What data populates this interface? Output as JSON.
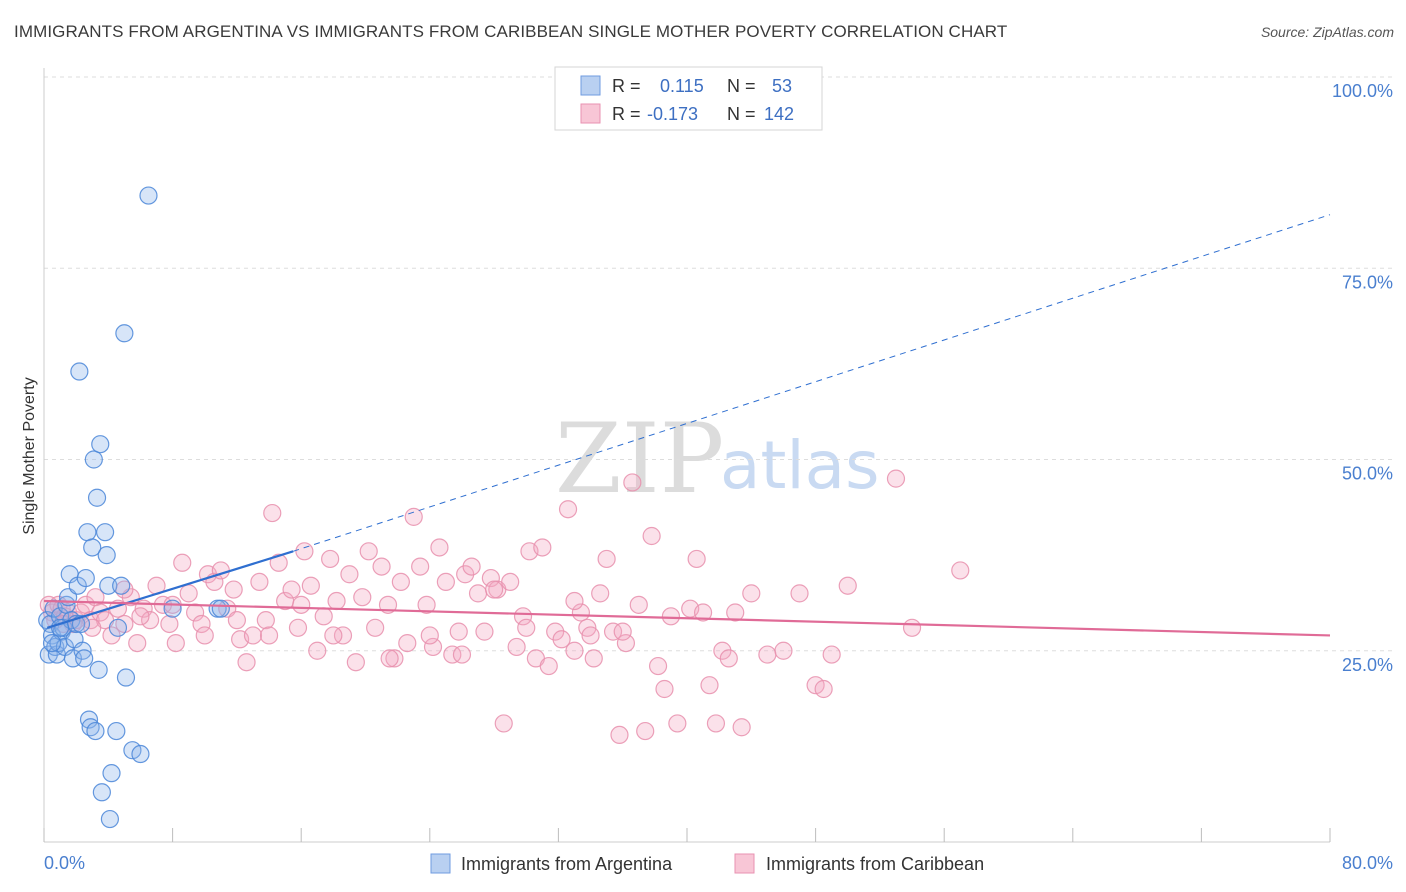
{
  "title": "IMMIGRANTS FROM ARGENTINA VS IMMIGRANTS FROM CARIBBEAN SINGLE MOTHER POVERTY CORRELATION CHART",
  "source": "Source: ZipAtlas.com",
  "watermark": {
    "zip": "ZIP",
    "atlas": "atlas"
  },
  "legend_box": {
    "rows": [
      {
        "r_label": "R =",
        "r_value": "0.115",
        "n_label": "N =",
        "n_value": "53"
      },
      {
        "r_label": "R =",
        "r_value": "-0.173",
        "n_label": "N =",
        "n_value": "142"
      }
    ]
  },
  "chart_data": {
    "type": "scatter",
    "title": "IMMIGRANTS FROM ARGENTINA VS IMMIGRANTS FROM CARIBBEAN SINGLE MOTHER POVERTY CORRELATION CHART",
    "xlabel": "",
    "ylabel": "Single Mother Poverty",
    "xlim": [
      0,
      80
    ],
    "ylim": [
      0,
      100
    ],
    "x_tick_labels": [
      "0.0%",
      "80.0%"
    ],
    "y_tick_labels": [
      "25.0%",
      "50.0%",
      "75.0%",
      "100.0%"
    ],
    "y_ticks": [
      25,
      50,
      75,
      100
    ],
    "grid": true,
    "legend_position": "bottom-center",
    "colors": {
      "argentina": "#4a86d8",
      "caribbean": "#e88fad",
      "argentina_line": "#2f6fd0",
      "caribbean_line": "#e06b97"
    },
    "series": [
      {
        "name": "Immigrants from Argentina",
        "r": 0.115,
        "n": 53,
        "trend": {
          "x": [
            0.2,
            15.5,
            80
          ],
          "y": [
            28.0,
            38.0,
            82.0
          ],
          "solid_until_x": 15.5
        },
        "points": [
          [
            0.2,
            29.0
          ],
          [
            0.3,
            24.5
          ],
          [
            0.4,
            28.5
          ],
          [
            0.5,
            27.0
          ],
          [
            0.6,
            30.5
          ],
          [
            0.7,
            25.5
          ],
          [
            0.8,
            24.5
          ],
          [
            0.9,
            26.0
          ],
          [
            1.0,
            29.5
          ],
          [
            1.1,
            27.5
          ],
          [
            1.2,
            28.0
          ],
          [
            1.3,
            25.5
          ],
          [
            1.4,
            31.0
          ],
          [
            1.5,
            32.0
          ],
          [
            1.6,
            35.0
          ],
          [
            1.7,
            29.0
          ],
          [
            1.8,
            24.0
          ],
          [
            1.9,
            26.5
          ],
          [
            2.0,
            28.5
          ],
          [
            2.1,
            33.5
          ],
          [
            2.2,
            61.5
          ],
          [
            2.3,
            28.5
          ],
          [
            2.4,
            25.0
          ],
          [
            2.5,
            24.0
          ],
          [
            2.6,
            34.5
          ],
          [
            2.7,
            40.5
          ],
          [
            2.8,
            16.0
          ],
          [
            2.9,
            15.0
          ],
          [
            3.0,
            38.5
          ],
          [
            3.1,
            50.0
          ],
          [
            3.2,
            14.5
          ],
          [
            3.3,
            45.0
          ],
          [
            3.4,
            22.5
          ],
          [
            3.5,
            52.0
          ],
          [
            3.6,
            6.5
          ],
          [
            3.8,
            40.5
          ],
          [
            3.9,
            37.5
          ],
          [
            4.0,
            33.5
          ],
          [
            4.1,
            3.0
          ],
          [
            4.2,
            9.0
          ],
          [
            4.5,
            14.5
          ],
          [
            4.6,
            28.0
          ],
          [
            4.8,
            33.5
          ],
          [
            5.0,
            66.5
          ],
          [
            5.1,
            21.5
          ],
          [
            5.5,
            12.0
          ],
          [
            6.0,
            11.5
          ],
          [
            6.5,
            84.5
          ],
          [
            8.0,
            30.5
          ],
          [
            10.8,
            30.5
          ],
          [
            11.0,
            30.5
          ],
          [
            0.5,
            26.0
          ],
          [
            1.0,
            28.0
          ]
        ]
      },
      {
        "name": "Immigrants from Caribbean",
        "r": -0.173,
        "n": 142,
        "trend": {
          "x": [
            0,
            80
          ],
          "y": [
            31.5,
            27.0
          ]
        },
        "points": [
          [
            0.3,
            31.0
          ],
          [
            0.5,
            30.0
          ],
          [
            0.7,
            29.0
          ],
          [
            0.9,
            31.0
          ],
          [
            1.1,
            30.5
          ],
          [
            1.3,
            29.5
          ],
          [
            1.5,
            30.0
          ],
          [
            1.8,
            28.5
          ],
          [
            2.0,
            29.0
          ],
          [
            2.3,
            30.0
          ],
          [
            2.6,
            31.0
          ],
          [
            2.9,
            29.0
          ],
          [
            3.2,
            32.0
          ],
          [
            3.5,
            30.0
          ],
          [
            3.8,
            29.0
          ],
          [
            4.2,
            27.0
          ],
          [
            4.6,
            30.5
          ],
          [
            5.0,
            28.5
          ],
          [
            5.4,
            32.0
          ],
          [
            5.8,
            26.0
          ],
          [
            6.2,
            30.5
          ],
          [
            6.6,
            29.0
          ],
          [
            7.0,
            33.5
          ],
          [
            7.4,
            31.0
          ],
          [
            7.8,
            28.5
          ],
          [
            8.2,
            26.0
          ],
          [
            8.6,
            36.5
          ],
          [
            9.0,
            32.5
          ],
          [
            9.4,
            30.0
          ],
          [
            9.8,
            28.5
          ],
          [
            10.2,
            35.0
          ],
          [
            10.6,
            34.0
          ],
          [
            11.0,
            35.5
          ],
          [
            11.4,
            30.5
          ],
          [
            11.8,
            33.0
          ],
          [
            12.2,
            26.5
          ],
          [
            12.6,
            23.5
          ],
          [
            13.0,
            27.0
          ],
          [
            13.4,
            34.0
          ],
          [
            13.8,
            29.0
          ],
          [
            14.2,
            43.0
          ],
          [
            14.6,
            36.5
          ],
          [
            15.0,
            31.5
          ],
          [
            15.4,
            33.0
          ],
          [
            15.8,
            28.0
          ],
          [
            16.2,
            38.0
          ],
          [
            16.6,
            33.5
          ],
          [
            17.0,
            25.0
          ],
          [
            17.4,
            29.5
          ],
          [
            17.8,
            37.0
          ],
          [
            18.2,
            31.5
          ],
          [
            18.6,
            27.0
          ],
          [
            19.0,
            35.0
          ],
          [
            19.4,
            23.5
          ],
          [
            19.8,
            32.0
          ],
          [
            20.2,
            38.0
          ],
          [
            20.6,
            28.0
          ],
          [
            21.0,
            36.0
          ],
          [
            21.4,
            31.0
          ],
          [
            21.8,
            24.0
          ],
          [
            22.2,
            34.0
          ],
          [
            22.6,
            26.0
          ],
          [
            23.0,
            42.5
          ],
          [
            23.4,
            36.0
          ],
          [
            23.8,
            31.0
          ],
          [
            24.2,
            25.5
          ],
          [
            24.6,
            38.5
          ],
          [
            25.0,
            34.0
          ],
          [
            25.4,
            24.5
          ],
          [
            25.8,
            27.5
          ],
          [
            26.2,
            35.0
          ],
          [
            26.6,
            36.0
          ],
          [
            27.0,
            32.5
          ],
          [
            27.4,
            27.5
          ],
          [
            27.8,
            34.5
          ],
          [
            28.2,
            33.0
          ],
          [
            28.6,
            15.5
          ],
          [
            29.0,
            34.0
          ],
          [
            29.4,
            25.5
          ],
          [
            29.8,
            29.5
          ],
          [
            30.2,
            38.0
          ],
          [
            30.6,
            24.0
          ],
          [
            31.0,
            38.5
          ],
          [
            31.4,
            23.0
          ],
          [
            31.8,
            27.5
          ],
          [
            32.2,
            26.5
          ],
          [
            32.6,
            43.5
          ],
          [
            33.0,
            25.0
          ],
          [
            33.4,
            30.0
          ],
          [
            33.8,
            28.0
          ],
          [
            34.2,
            24.0
          ],
          [
            34.6,
            32.5
          ],
          [
            35.0,
            37.0
          ],
          [
            35.4,
            27.5
          ],
          [
            35.8,
            14.0
          ],
          [
            36.2,
            26.0
          ],
          [
            36.6,
            47.0
          ],
          [
            37.0,
            31.0
          ],
          [
            37.4,
            14.5
          ],
          [
            37.8,
            40.0
          ],
          [
            38.2,
            23.0
          ],
          [
            38.6,
            20.0
          ],
          [
            39.0,
            29.5
          ],
          [
            39.4,
            15.5
          ],
          [
            40.2,
            30.5
          ],
          [
            40.6,
            37.0
          ],
          [
            41.0,
            30.0
          ],
          [
            41.4,
            20.5
          ],
          [
            41.8,
            15.5
          ],
          [
            42.2,
            25.0
          ],
          [
            42.6,
            24.0
          ],
          [
            43.0,
            30.0
          ],
          [
            43.4,
            15.0
          ],
          [
            44.0,
            32.5
          ],
          [
            45.0,
            24.5
          ],
          [
            46.0,
            25.0
          ],
          [
            47.0,
            32.5
          ],
          [
            48.0,
            20.5
          ],
          [
            48.5,
            20.0
          ],
          [
            49.0,
            24.5
          ],
          [
            50.0,
            33.5
          ],
          [
            53.0,
            47.5
          ],
          [
            54.0,
            28.0
          ],
          [
            57.0,
            35.5
          ],
          [
            36.0,
            27.5
          ],
          [
            21.5,
            24.0
          ],
          [
            24.0,
            27.0
          ],
          [
            26.0,
            24.5
          ],
          [
            28.0,
            33.0
          ],
          [
            30.0,
            28.0
          ],
          [
            33.0,
            31.5
          ],
          [
            34.0,
            27.0
          ],
          [
            18.0,
            27.0
          ],
          [
            16.0,
            31.0
          ],
          [
            14.0,
            27.0
          ],
          [
            12.0,
            29.0
          ],
          [
            10.0,
            27.0
          ],
          [
            8.0,
            31.0
          ],
          [
            6.0,
            29.5
          ],
          [
            5.0,
            33.0
          ],
          [
            3.0,
            28.0
          ],
          [
            1.2,
            28.5
          ]
        ]
      }
    ]
  },
  "bottom_legend": [
    {
      "label": "Immigrants from Argentina"
    },
    {
      "label": "Immigrants from Caribbean"
    }
  ]
}
